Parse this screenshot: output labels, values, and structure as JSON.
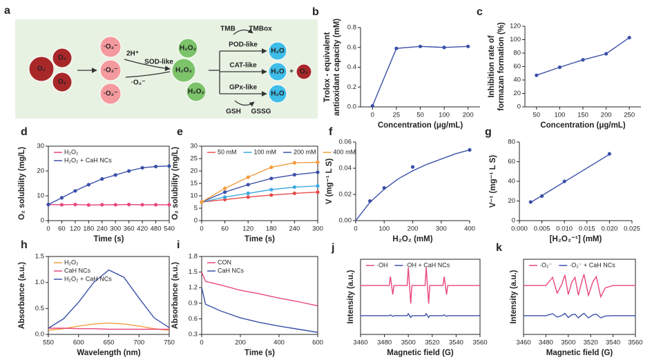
{
  "scheme": {
    "label": "a",
    "items": [
      "O₂",
      "O₂",
      "O₂",
      "·O₂⁻",
      "·O₂⁻",
      "·O₂⁻",
      "2H⁺",
      "SOD-like",
      "·O₂⁻",
      "H₂O₂",
      "H₂O₂",
      "H₂O₂",
      "TMB",
      "TMBox",
      "POD-like",
      "H₂O",
      "CAT-like",
      "H₂O",
      "+",
      "O₂",
      "GPx-like",
      "H₂O",
      "GSH",
      "GSSG"
    ]
  },
  "chart_data": [
    {
      "label": "b",
      "type": "line",
      "categories": [
        "0",
        "25",
        "50",
        "100",
        "200"
      ],
      "series": [
        {
          "color": "#3a4fa8",
          "marker": true,
          "values": [
            0.01,
            0.59,
            0.61,
            0.6,
            0.61
          ]
        }
      ],
      "ylim": [
        0,
        0.8
      ],
      "yticks": [
        {
          "value": 0,
          "label": "0.0"
        },
        0.2,
        0.4,
        0.6,
        0.8
      ],
      "xlabel": "Concentration (μg/mL)",
      "ylabel": [
        "Trolox - equivalent",
        "antioxidant capacity (mM)"
      ]
    },
    {
      "label": "c",
      "type": "line",
      "x": [
        50,
        100,
        150,
        200,
        250
      ],
      "xlim": [
        25,
        275
      ],
      "xticks": [
        50,
        100,
        150,
        200,
        250
      ],
      "series": [
        {
          "color": "#3a4fa8",
          "marker": true,
          "values": [
            47,
            59,
            70,
            79,
            103
          ]
        }
      ],
      "ylim": [
        0,
        120
      ],
      "yticks": [
        0,
        20,
        40,
        60,
        80,
        100,
        120
      ],
      "xlabel": "Concentration (μg/mL)",
      "ylabel": [
        "Inhibition rate of",
        "formazan formation (%)"
      ]
    },
    {
      "label": "d",
      "type": "line",
      "frame": true,
      "legend": "top-left",
      "x": [
        0,
        60,
        120,
        180,
        240,
        300,
        360,
        420,
        480,
        540
      ],
      "xlim": [
        0,
        540
      ],
      "xticks": [
        0,
        60,
        120,
        180,
        240,
        300,
        360,
        420,
        480,
        540
      ],
      "series": [
        {
          "name": "H₂O₂",
          "color": "#e8467c",
          "marker": true,
          "values": [
            6.5,
            6.4,
            6.5,
            6.3,
            6.4,
            6.4,
            6.5,
            6.4,
            6.4,
            6.4
          ]
        },
        {
          "name": "H₂O₂ + CaH NCs",
          "color": "#3a4fa8",
          "marker": true,
          "values": [
            6.5,
            9.2,
            12,
            14.5,
            16.8,
            18.4,
            20,
            21.3,
            21.8,
            22
          ]
        }
      ],
      "ylim": [
        0,
        30
      ],
      "yticks": [
        0,
        10,
        20,
        30
      ],
      "xlabel": "Time (s)",
      "ylabel": "O₂ solubility (mg/L)"
    },
    {
      "label": "e",
      "type": "line",
      "frame": true,
      "legend": "top",
      "x": [
        0,
        60,
        120,
        180,
        240,
        300
      ],
      "xlim": [
        0,
        300
      ],
      "xticks": [
        0,
        60,
        120,
        180,
        240,
        300
      ],
      "series": [
        {
          "name": "50 mM",
          "color": "#e84a4a",
          "marker": true,
          "values": [
            7.5,
            8.5,
            9.5,
            10.3,
            11,
            11.5
          ]
        },
        {
          "name": "100 mM",
          "color": "#3ba9e0",
          "marker": true,
          "values": [
            7.5,
            9.5,
            11,
            12.5,
            13.5,
            14
          ]
        },
        {
          "name": "200 mM",
          "color": "#3a4fa8",
          "marker": true,
          "values": [
            7.5,
            11.5,
            14.5,
            17,
            18.5,
            19.5
          ]
        },
        {
          "name": "400 mM",
          "color": "#f39c3c",
          "marker": true,
          "values": [
            7.5,
            13,
            17.5,
            21.5,
            23.3,
            23.5
          ]
        }
      ],
      "ylim": [
        0,
        30
      ],
      "yticks": [
        0,
        5,
        10,
        15,
        20,
        25,
        30
      ],
      "xlabel": "Time (s)",
      "ylabel": "O₂ solubility (mg/L)"
    },
    {
      "label": "f",
      "type": "scatter",
      "xlim": [
        0,
        400
      ],
      "xticks": [
        0,
        100,
        200,
        300,
        400
      ],
      "series": [
        {
          "color": "#3a4fa8",
          "marker": true,
          "line": false,
          "x": [
            50,
            100,
            200,
            400
          ],
          "values": [
            0.015,
            0.025,
            0.041,
            0.054
          ]
        },
        {
          "color": "#3a4fa8",
          "x": [
            0,
            50,
            100,
            150,
            200,
            250,
            300,
            350,
            400
          ],
          "values": [
            0,
            0.014,
            0.024,
            0.032,
            0.038,
            0.043,
            0.047,
            0.051,
            0.054
          ]
        }
      ],
      "ylim": [
        0,
        0.06
      ],
      "yticks": [
        {
          "value": 0,
          "label": "0.00"
        },
        0.02,
        0.04,
        0.06
      ],
      "xlabel": "H₂O₂ (mM)",
      "ylabel": "V (mg⁻¹ L S)"
    },
    {
      "label": "g",
      "type": "scatter",
      "xlim": [
        0,
        0.025
      ],
      "xticks": [
        {
          "value": 0,
          "label": "0.000"
        },
        0.005,
        {
          "value": 0.01,
          "label": "0.010"
        },
        0.015,
        {
          "value": 0.02,
          "label": "0.020"
        },
        0.025
      ],
      "series": [
        {
          "color": "#3a4fa8",
          "marker": true,
          "line": false,
          "x": [
            0.0025,
            0.005,
            0.01,
            0.02
          ],
          "values": [
            19,
            25,
            40,
            68
          ]
        },
        {
          "color": "#3a4fa8",
          "x": [
            0.0025,
            0.02
          ],
          "values": [
            18.5,
            67.5
          ]
        }
      ],
      "ylim": [
        0,
        80
      ],
      "yticks": [
        0,
        20,
        40,
        60,
        80
      ],
      "xlabel": "[H₂O₂⁻¹] (mM)",
      "ylabel": "V⁻¹ (mg⁻¹ L S)"
    },
    {
      "label": "h",
      "type": "line",
      "frame": true,
      "legend": "top-left",
      "x": [
        550,
        575,
        600,
        625,
        650,
        675,
        700,
        725,
        750
      ],
      "xlim": [
        550,
        750
      ],
      "xticks": [
        550,
        600,
        650,
        700,
        750
      ],
      "series": [
        {
          "name": "H₂O₂",
          "color": "#f39c3c",
          "values": [
            0.08,
            0.11,
            0.16,
            0.2,
            0.22,
            0.2,
            0.16,
            0.11,
            0.08
          ]
        },
        {
          "name": "CaH NCs",
          "color": "#e8467c",
          "values": [
            0.12,
            0.12,
            0.11,
            0.11,
            0.1,
            0.1,
            0.1,
            0.1,
            0.1
          ]
        },
        {
          "name": "H₂O₂ + CaH NCs",
          "color": "#3a4fa8",
          "values": [
            0.12,
            0.3,
            0.62,
            1.0,
            1.24,
            1.1,
            0.7,
            0.32,
            0.13
          ]
        }
      ],
      "ylim": [
        0,
        1.5
      ],
      "yticks": [
        {
          "value": 0,
          "label": "0.0"
        },
        0.5,
        {
          "value": 1,
          "label": "1.0"
        },
        1.5
      ],
      "xlabel": "Wavelength (nm)",
      "ylabel": "Absorbance (a.u.)"
    },
    {
      "label": "i",
      "type": "line",
      "frame": true,
      "legend": "top-left",
      "x": [
        0,
        20,
        100,
        200,
        300,
        400,
        500,
        600
      ],
      "xlim": [
        0,
        600
      ],
      "xticks": [
        0,
        200,
        400,
        600
      ],
      "series": [
        {
          "name": "CON",
          "color": "#e8467c",
          "values": [
            1.5,
            1.32,
            1.25,
            1.15,
            1.08,
            1.0,
            0.93,
            0.85
          ]
        },
        {
          "name": "CaH NCs",
          "color": "#3a4fa8",
          "values": [
            1.2,
            0.88,
            0.75,
            0.62,
            0.53,
            0.46,
            0.4,
            0.34
          ]
        }
      ],
      "ylim": [
        0.3,
        1.8
      ],
      "yticks": [
        0.3,
        0.6,
        0.9,
        1.2,
        1.5,
        1.8
      ],
      "xlabel": "Time (s)",
      "ylabel": "Absorbance (a.u.)"
    },
    {
      "label": "j",
      "type": "line",
      "frame": true,
      "legend": "top",
      "xlim": [
        3460,
        3560
      ],
      "xticks": [
        3460,
        3480,
        3500,
        3520,
        3540,
        3560
      ],
      "ylim": [
        0,
        10
      ],
      "series": [
        {
          "name": "·OH",
          "color": "#e8467c",
          "x": [
            3460,
            3484,
            3485,
            3487,
            3488,
            3499,
            3500,
            3502,
            3503,
            3514,
            3515,
            3517,
            3518,
            3529,
            3530,
            3532,
            3533,
            3560
          ],
          "values": [
            6.5,
            6.5,
            7.7,
            5.3,
            6.5,
            6.5,
            8.9,
            4.1,
            6.5,
            6.5,
            8.9,
            4.1,
            6.5,
            6.5,
            7.7,
            5.3,
            6.5,
            6.5
          ]
        },
        {
          "name": "·OH + CaH NCs",
          "color": "#3a4fa8",
          "x": [
            3460,
            3484,
            3485,
            3487,
            3488,
            3499,
            3500,
            3502,
            3503,
            3514,
            3515,
            3517,
            3518,
            3529,
            3530,
            3532,
            3533,
            3560
          ],
          "values": [
            2.5,
            2.5,
            2.6,
            2.4,
            2.5,
            2.5,
            2.75,
            2.25,
            2.5,
            2.5,
            2.75,
            2.25,
            2.5,
            2.5,
            2.6,
            2.4,
            2.5,
            2.5
          ]
        }
      ],
      "xlabel": "Magnetic field (G)",
      "ylabel": "Intensity (a.u.)"
    },
    {
      "label": "k",
      "type": "line",
      "frame": true,
      "legend": "top",
      "xlim": [
        3460,
        3560
      ],
      "xticks": [
        3460,
        3480,
        3500,
        3520,
        3540,
        3560
      ],
      "ylim": [
        0,
        10
      ],
      "series": [
        {
          "name": "·O₂⁻",
          "color": "#e8467c",
          "x": [
            3460,
            3480,
            3486,
            3490,
            3494,
            3497,
            3500,
            3503,
            3506,
            3509,
            3512,
            3514,
            3518,
            3522,
            3525,
            3529,
            3533,
            3540,
            3560
          ],
          "values": [
            6.5,
            6.5,
            7.6,
            5.5,
            6.6,
            7.9,
            5.3,
            6.9,
            7.6,
            5.2,
            7.0,
            8.0,
            5.2,
            7.0,
            7.7,
            5.0,
            6.2,
            6.5,
            6.5
          ]
        },
        {
          "name": "·O₂⁻ + CaH NCs",
          "color": "#3a4fa8",
          "x": [
            3460,
            3480,
            3486,
            3490,
            3494,
            3497,
            3500,
            3503,
            3506,
            3509,
            3512,
            3514,
            3518,
            3522,
            3525,
            3529,
            3533,
            3540,
            3560
          ],
          "values": [
            2.5,
            2.5,
            2.75,
            2.3,
            2.5,
            2.8,
            2.25,
            2.6,
            2.7,
            2.2,
            2.6,
            2.8,
            2.2,
            2.6,
            2.7,
            2.2,
            2.45,
            2.5,
            2.5
          ]
        }
      ],
      "xlabel": "Magnetic field (G)",
      "ylabel": "Intensity (a.u.)"
    }
  ]
}
